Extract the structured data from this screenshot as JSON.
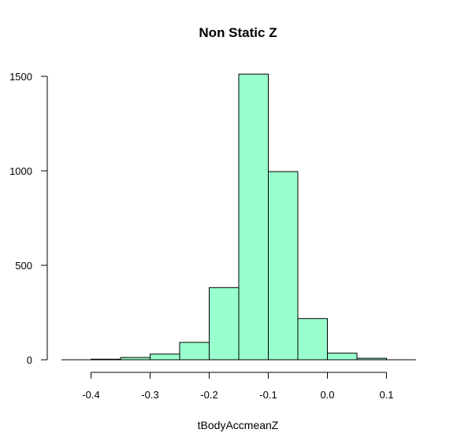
{
  "chart_data": {
    "type": "bar",
    "title": "Non Static Z",
    "xlabel": "tBodyAccmeanZ",
    "ylabel": "",
    "xlim": [
      -0.45,
      0.15
    ],
    "ylim": [
      0,
      1500
    ],
    "grid": false,
    "legend": "none",
    "bar_color": "#99FFCC",
    "bins": [
      {
        "start": -0.4,
        "end": -0.35,
        "count": 3
      },
      {
        "start": -0.35,
        "end": -0.3,
        "count": 12
      },
      {
        "start": -0.3,
        "end": -0.25,
        "count": 30
      },
      {
        "start": -0.25,
        "end": -0.2,
        "count": 92
      },
      {
        "start": -0.2,
        "end": -0.15,
        "count": 382
      },
      {
        "start": -0.15,
        "end": -0.1,
        "count": 1512
      },
      {
        "start": -0.1,
        "end": -0.05,
        "count": 996
      },
      {
        "start": -0.05,
        "end": 0.0,
        "count": 218
      },
      {
        "start": 0.0,
        "end": 0.05,
        "count": 35
      },
      {
        "start": 0.05,
        "end": 0.1,
        "count": 8
      }
    ],
    "x_ticks": [
      -0.4,
      -0.3,
      -0.2,
      -0.1,
      0.0,
      0.1
    ],
    "x_tick_labels": [
      "-0.4",
      "-0.3",
      "-0.2",
      "-0.1",
      "0.0",
      "0.1"
    ],
    "y_ticks": [
      0,
      500,
      1000,
      1500
    ],
    "y_tick_labels": [
      "0",
      "500",
      "1000",
      "1500"
    ]
  }
}
